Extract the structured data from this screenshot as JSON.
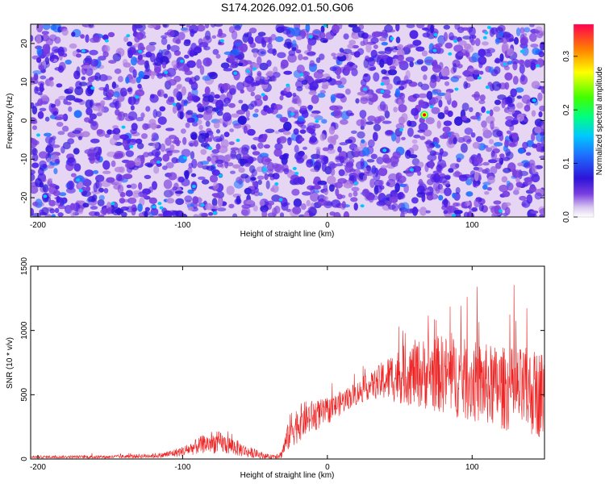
{
  "title": "S174.2026.092.01.50.G06",
  "chart_data": [
    {
      "type": "heatmap",
      "xlabel": "Height of straight line (km)",
      "ylabel": "Frequency (Hz)",
      "xlim": [
        -205,
        150
      ],
      "ylim": [
        -25,
        25
      ],
      "xticks": [
        -200,
        -100,
        0,
        100
      ],
      "yticks": [
        -20,
        -10,
        0,
        10,
        20
      ],
      "colorbar": {
        "label": "Normalized spectral amplitude",
        "range": [
          0.0,
          0.36
        ],
        "ticks": [
          0.0,
          0.1,
          0.2,
          0.3
        ]
      },
      "hotspot": {
        "x": 67,
        "y": 1.5,
        "value": 0.36
      },
      "colors": [
        "#e8d8f5",
        "#b080e0",
        "#7a3ee0",
        "#4b1ee6",
        "#2d14d8",
        "#1e6eff",
        "#00c8ff",
        "#00ff80",
        "#ffff00",
        "#ff8000",
        "#ff0000"
      ]
    },
    {
      "type": "line",
      "xlabel": "Height of straight line (km)",
      "ylabel": "SNR (10 * v/v)",
      "xlim": [
        -205,
        150
      ],
      "ylim": [
        0,
        1500
      ],
      "xticks": [
        -200,
        -100,
        0,
        100
      ],
      "yticks": [
        0,
        500,
        1000,
        1500
      ],
      "color": "#ee2222",
      "envelope": [
        {
          "x": -205,
          "base": 15,
          "amp": 20
        },
        {
          "x": -150,
          "base": 15,
          "amp": 25
        },
        {
          "x": -115,
          "base": 25,
          "amp": 40
        },
        {
          "x": -100,
          "base": 55,
          "amp": 80
        },
        {
          "x": -85,
          "base": 110,
          "amp": 150
        },
        {
          "x": -75,
          "base": 120,
          "amp": 170
        },
        {
          "x": -65,
          "base": 90,
          "amp": 140
        },
        {
          "x": -55,
          "base": 50,
          "amp": 90
        },
        {
          "x": -40,
          "base": 15,
          "amp": 30
        },
        {
          "x": -32,
          "base": 30,
          "amp": 60
        },
        {
          "x": -25,
          "base": 220,
          "amp": 300
        },
        {
          "x": -15,
          "base": 300,
          "amp": 280
        },
        {
          "x": 0,
          "base": 360,
          "amp": 200
        },
        {
          "x": 15,
          "base": 470,
          "amp": 180
        },
        {
          "x": 30,
          "base": 560,
          "amp": 200
        },
        {
          "x": 45,
          "base": 620,
          "amp": 400
        },
        {
          "x": 60,
          "base": 640,
          "amp": 520
        },
        {
          "x": 80,
          "base": 630,
          "amp": 620
        },
        {
          "x": 100,
          "base": 570,
          "amp": 640
        },
        {
          "x": 120,
          "base": 520,
          "amp": 650
        },
        {
          "x": 150,
          "base": 470,
          "amp": 700
        }
      ]
    }
  ]
}
